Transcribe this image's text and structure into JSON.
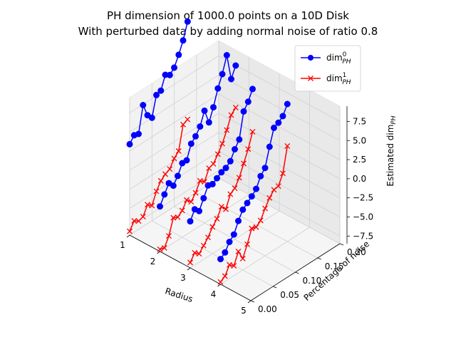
{
  "chart_data": {
    "type": "line",
    "projection": "3d",
    "title_line1": "PH dimension of 1000.0 points on a 10D Disk",
    "title_line2": "With perturbed data by adding normal noise of ratio 0.8",
    "xlabel": "Radius",
    "ylabel": "Percentage of noise",
    "zlabel": "Estimated dim_PH",
    "xlim": [
      1,
      5
    ],
    "ylim": [
      0,
      0.2
    ],
    "zlim": [
      -8.5,
      9.5
    ],
    "xticks": [
      1,
      2,
      3,
      4,
      5
    ],
    "yticks": [
      0.0,
      0.05,
      0.1,
      0.15,
      0.2
    ],
    "zticks": [
      -7.5,
      -5.0,
      -2.5,
      0.0,
      2.5,
      5.0,
      7.5
    ],
    "xtick_labels": [
      "1",
      "2",
      "3",
      "4",
      "5"
    ],
    "ytick_labels": [
      "0.00",
      "0.05",
      "0.10",
      "0.15",
      "0.20"
    ],
    "ztick_labels": [
      "−7.5",
      "−5.0",
      "−2.5",
      "0.0",
      "2.5",
      "5.0",
      "7.5"
    ],
    "legend_position": "top-right",
    "noise_levels": [
      0.0,
      0.01,
      0.02,
      0.03,
      0.04,
      0.05,
      0.06,
      0.07,
      0.08,
      0.09,
      0.1,
      0.11,
      0.12,
      0.13,
      0.14,
      0.15,
      0.16,
      0.17,
      0.18,
      0.19,
      0.2
    ],
    "radii": [
      1,
      2,
      3,
      4
    ],
    "series": [
      {
        "name": "dim",
        "sup": "0",
        "sub": "PH",
        "color": "#0000ff",
        "marker": "circle",
        "lines": [
          {
            "radius": 1,
            "z": [
              3.4,
              4.2,
              4.0,
              7.4,
              5.7,
              5.0,
              7.6,
              7.8,
              9.5,
              9.1,
              9.7,
              11.0,
              12.5,
              14.6
            ]
          },
          {
            "radius": 2,
            "z": [
              -2.6,
              -1.4,
              -0.3,
              -1.0,
              -0.1,
              1.2,
              1.2,
              3.0,
              3.6,
              4.5,
              6.2,
              4.3,
              5.9,
              8.0,
              9.5,
              11.6,
              8.1,
              9.5
            ]
          },
          {
            "radius": 3,
            "z": [
              -2.4,
              -1.2,
              -1.8,
              -0.5,
              0.8,
              0.6,
              1.0,
              1.4,
              1.6,
              2.1,
              3.3,
              4.2,
              7.5,
              8.4,
              9.7
            ]
          },
          {
            "radius": 4,
            "z": [
              -5.2,
              -4.7,
              -3.7,
              -3.1,
              -1.7,
              -0.6,
              -0.1,
              0.4,
              1.0,
              2.3,
              3.0,
              5.4,
              7.5,
              7.8,
              8.3,
              9.5
            ]
          }
        ]
      },
      {
        "name": "dim",
        "sup": "1",
        "sub": "PH",
        "color": "#ff0000",
        "marker": "x",
        "lines": [
          {
            "radius": 1,
            "z": [
              -8.0,
              -7.0,
              -7.4,
              -7.2,
              -6.0,
              -6.5,
              -5.0,
              -4.0,
              -3.5,
              -3.2,
              -2.2,
              -1.6,
              1.5,
              1.8
            ]
          },
          {
            "radius": 2,
            "z": [
              -8.2,
              -8.4,
              -7.2,
              -5.2,
              -5.5,
              -5.0,
              -4.0,
              -4.6,
              -3.8,
              -2.6,
              -3.1,
              -1.7,
              -1.5,
              -0.6,
              0.4,
              1.8,
              3.4,
              4.0
            ]
          },
          {
            "radius": 3,
            "z": [
              -7.8,
              -6.9,
              -7.4,
              -6.7,
              -6.0,
              -5.0,
              -4.3,
              -3.1,
              -3.8,
              -2.2,
              -1.8,
              -0.8,
              0.7,
              2.2,
              4.1
            ]
          },
          {
            "radius": 4,
            "z": [
              -8.2,
              -7.8,
              -6.7,
              -7.2,
              -5.7,
              -7.0,
              -5.5,
              -3.8,
              -4.0,
              -3.5,
              -2.3,
              -1.3,
              -0.6,
              -0.5,
              0.8,
              4.0
            ]
          }
        ]
      }
    ]
  }
}
